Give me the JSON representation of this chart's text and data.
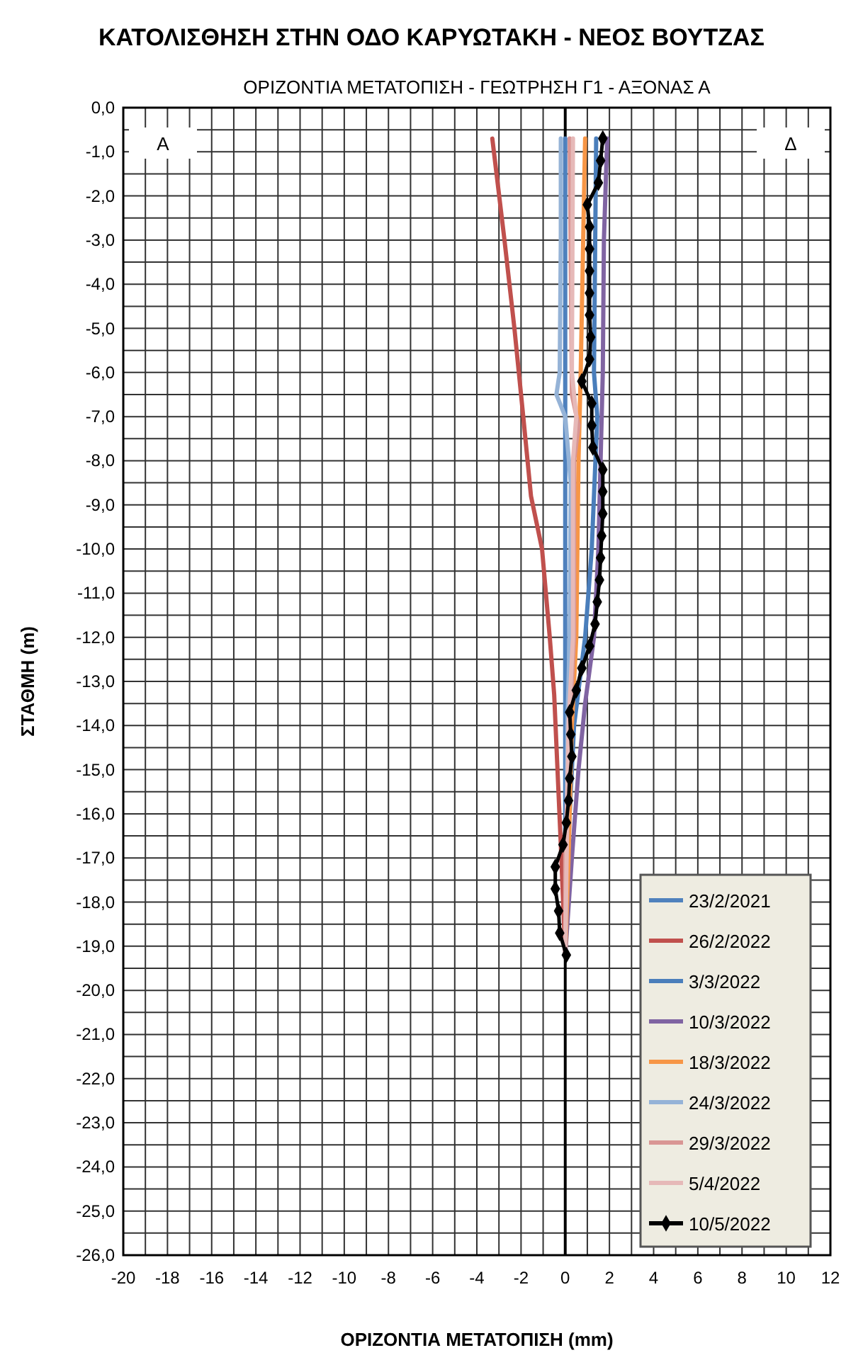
{
  "chart_data": {
    "type": "line",
    "title": "ΚΑΤΟΛΙΣΘΗΣΗ ΣΤΗΝ ΟΔΟ ΚΑΡΥΩΤΑΚΗ - ΝΕΟΣ ΒΟΥΤΖΑΣ",
    "subtitle": "ΟΡΙΖΟΝΤΙΑ ΜΕΤΑΤΟΠΙΣΗ - ΓΕΩΤΡΗΣΗ Γ1 - ΑΞΟΝΑΣ Α",
    "xlabel": "ΟΡΙΖΟΝΤΙΑ ΜΕΤΑΤΟΠΙΣΗ (mm)",
    "ylabel": "ΣΤΑΘΜΗ (m)",
    "annotations": [
      "Α",
      "Δ"
    ],
    "xlim": [
      -20,
      12
    ],
    "xticks": [
      -20,
      -18,
      -16,
      -14,
      -12,
      -10,
      -8,
      -6,
      -4,
      -2,
      0,
      2,
      4,
      6,
      8,
      10,
      12
    ],
    "ylim": [
      -26,
      0
    ],
    "yticks": [
      {
        "value": 0,
        "label": "0,0"
      },
      {
        "value": -1,
        "label": "-1,0"
      },
      {
        "value": -2,
        "label": "-2,0"
      },
      {
        "value": -3,
        "label": "-3,0"
      },
      {
        "value": -4,
        "label": "-4,0"
      },
      {
        "value": -5,
        "label": "-5,0"
      },
      {
        "value": -6,
        "label": "-6,0"
      },
      {
        "value": -7,
        "label": "-7,0"
      },
      {
        "value": -8,
        "label": "-8,0"
      },
      {
        "value": -9,
        "label": "-9,0"
      },
      {
        "value": -10,
        "label": "-10,0"
      },
      {
        "value": -11,
        "label": "-11,0"
      },
      {
        "value": -12,
        "label": "-12,0"
      },
      {
        "value": -13,
        "label": "-13,0"
      },
      {
        "value": -14,
        "label": "-14,0"
      },
      {
        "value": -15,
        "label": "-15,0"
      },
      {
        "value": -16,
        "label": "-16,0"
      },
      {
        "value": -17,
        "label": "-17,0"
      },
      {
        "value": -18,
        "label": "-18,0"
      },
      {
        "value": -19,
        "label": "-19,0"
      },
      {
        "value": -20,
        "label": "-20,0"
      },
      {
        "value": -21,
        "label": "-21,0"
      },
      {
        "value": -22,
        "label": "-22,0"
      },
      {
        "value": -23,
        "label": "-23,0"
      },
      {
        "value": -24,
        "label": "-24,0"
      },
      {
        "value": -25,
        "label": "-25,0"
      },
      {
        "value": -26,
        "label": "-26,0"
      }
    ],
    "grid": true,
    "legend": "bottom right",
    "line_style": "solid",
    "series": [
      {
        "name": "23/2/2021",
        "color": "#4f81bd",
        "x": [
          0,
          0
        ],
        "values": [
          -0.7,
          -19.2
        ]
      },
      {
        "name": "26/2/2022",
        "color": "#c0504d",
        "x": [
          -3.3,
          -2.75,
          -2.3,
          -1.9,
          -1.55,
          -1.05,
          -0.7,
          -0.5,
          -0.35,
          -0.2,
          0
        ],
        "values": [
          -0.7,
          -3,
          -5,
          -7,
          -8.8,
          -10,
          -12,
          -13.3,
          -15,
          -16.7,
          -19.2
        ]
      },
      {
        "name": "3/3/2022",
        "color": "#4a7ebb",
        "x": [
          1.4,
          1.3,
          1.45,
          1.2,
          0.9,
          0.4,
          0.1,
          0
        ],
        "values": [
          -0.7,
          -6,
          -7,
          -10,
          -12,
          -14,
          -17,
          -19.2
        ]
      },
      {
        "name": "10/3/2022",
        "color": "#8064a2",
        "x": [
          1.9,
          1.75,
          1.7,
          1.6,
          1.5,
          1.3,
          0.9,
          0.6,
          0.3,
          0
        ],
        "values": [
          -0.7,
          -3,
          -6,
          -8,
          -10,
          -12,
          -13.5,
          -15,
          -17,
          -19.2
        ]
      },
      {
        "name": "18/3/2022",
        "color": "#f79646",
        "x": [
          0.9,
          0.85,
          0.7,
          0.6,
          0.5,
          0.3,
          0.15,
          0
        ],
        "values": [
          -0.7,
          -2,
          -6,
          -8,
          -12,
          -14,
          -17,
          -19.2
        ]
      },
      {
        "name": "24/3/2022",
        "color": "#95b3d7",
        "x": [
          -0.2,
          -0.2,
          -0.25,
          -0.4,
          0,
          0.25,
          0.2,
          0.1,
          0
        ],
        "values": [
          -0.7,
          -3,
          -6,
          -6.5,
          -7,
          -8.5,
          -12,
          -14,
          -19.2
        ]
      },
      {
        "name": "29/3/2022",
        "color": "#d99694",
        "x": [
          0.2,
          0.3,
          0.6,
          0.4,
          0.4,
          0.2,
          0,
          0
        ],
        "values": [
          -0.7,
          -6.5,
          -7.2,
          -8,
          -12,
          -14,
          -17,
          -19.2
        ]
      },
      {
        "name": "5/4/2022",
        "color": "#e6b9b8",
        "x": [
          0.35,
          0.3,
          0.5,
          0.35,
          0.35,
          0.15,
          0
        ],
        "values": [
          -0.7,
          -6,
          -7,
          -8,
          -12,
          -14,
          -19.2
        ]
      },
      {
        "name": "10/5/2022",
        "color": "#000000",
        "marker": "diamond",
        "x": [
          1.7,
          1.6,
          1.5,
          1.0,
          1.1,
          1.1,
          1.1,
          1.1,
          1.1,
          1.15,
          1.1,
          0.75,
          1.2,
          1.2,
          1.25,
          1.7,
          1.7,
          1.7,
          1.65,
          1.6,
          1.55,
          1.45,
          1.35,
          1.1,
          0.75,
          0.5,
          0.2,
          0.25,
          0.3,
          0.2,
          0.15,
          0.05,
          -0.1,
          -0.45,
          -0.45,
          -0.3,
          -0.25,
          0.05
        ],
        "values": [
          -0.7,
          -1.2,
          -1.7,
          -2.2,
          -2.7,
          -3.2,
          -3.7,
          -4.2,
          -4.7,
          -5.2,
          -5.7,
          -6.2,
          -6.7,
          -7.2,
          -7.7,
          -8.2,
          -8.7,
          -9.2,
          -9.7,
          -10.2,
          -10.7,
          -11.2,
          -11.7,
          -12.2,
          -12.7,
          -13.2,
          -13.7,
          -14.2,
          -14.7,
          -15.2,
          -15.7,
          -16.2,
          -16.7,
          -17.2,
          -17.7,
          -18.2,
          -18.7,
          -19.2
        ]
      }
    ]
  }
}
